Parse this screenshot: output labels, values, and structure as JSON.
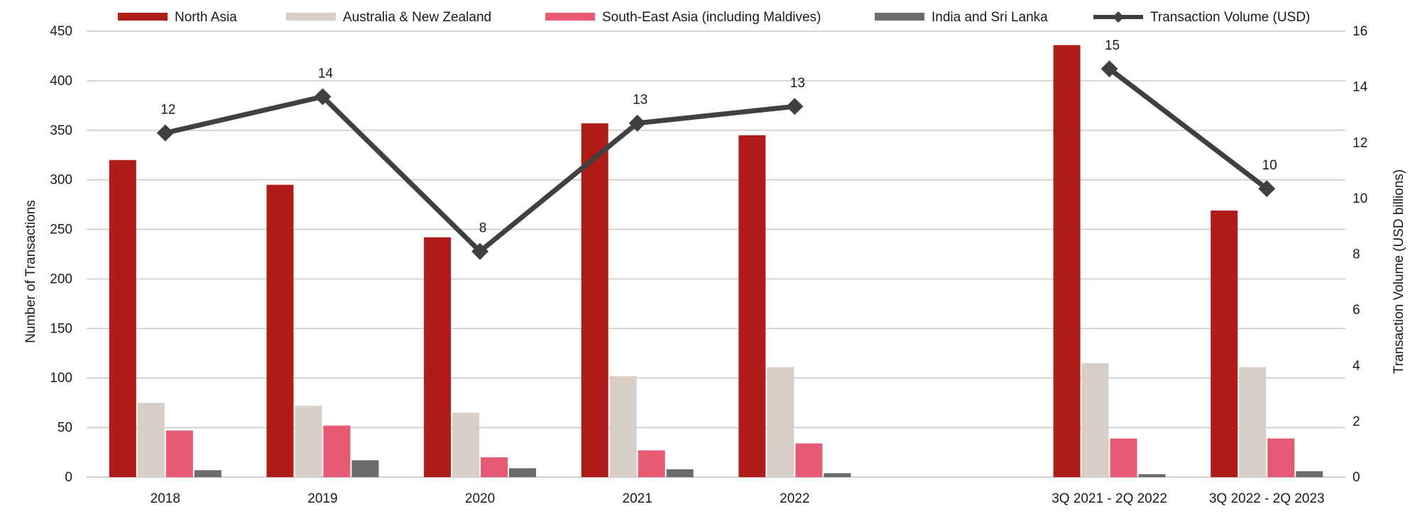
{
  "chart_data": {
    "type": "bar",
    "combo_line": true,
    "categories": [
      "2018",
      "2019",
      "2020",
      "2021",
      "2022",
      "",
      "3Q 2021 - 2Q 2022",
      "3Q 2022 - 2Q 2023"
    ],
    "series": [
      {
        "name": "North Asia",
        "color": "#b01c17",
        "values": [
          320,
          295,
          242,
          357,
          345,
          null,
          436,
          269
        ]
      },
      {
        "name": "Australia & New Zealand",
        "color": "#d8cec6",
        "values": [
          75,
          72,
          65,
          102,
          111,
          null,
          115,
          111
        ]
      },
      {
        "name": "South-East Asia (including Maldives)",
        "color": "#e85a73",
        "values": [
          47,
          52,
          20,
          27,
          34,
          null,
          39,
          39
        ]
      },
      {
        "name": "India and Sri Lanka",
        "color": "#6b6b6b",
        "values": [
          7,
          17,
          9,
          8,
          4,
          null,
          3,
          6
        ]
      }
    ],
    "line_series": {
      "name": "Transaction Volume (USD)",
      "color": "#404040",
      "values": [
        12.35,
        13.65,
        8.1,
        12.7,
        13.3,
        null,
        14.65,
        10.35
      ],
      "labels": [
        "12",
        "14",
        "8",
        "13",
        "13",
        "",
        "15",
        "10"
      ]
    },
    "ylabel": "Number of Transactions",
    "ylabel_right": "Transaction Volume (USD billions)",
    "ylim": [
      0,
      450
    ],
    "yticks": [
      "0",
      "50",
      "100",
      "150",
      "200",
      "250",
      "300",
      "350",
      "400",
      "450"
    ],
    "ylim_right": [
      0,
      16
    ],
    "yticks_right": [
      "0",
      "2",
      "4",
      "6",
      "8",
      "10",
      "12",
      "14",
      "16"
    ],
    "grid": true,
    "legend_position": "top"
  }
}
